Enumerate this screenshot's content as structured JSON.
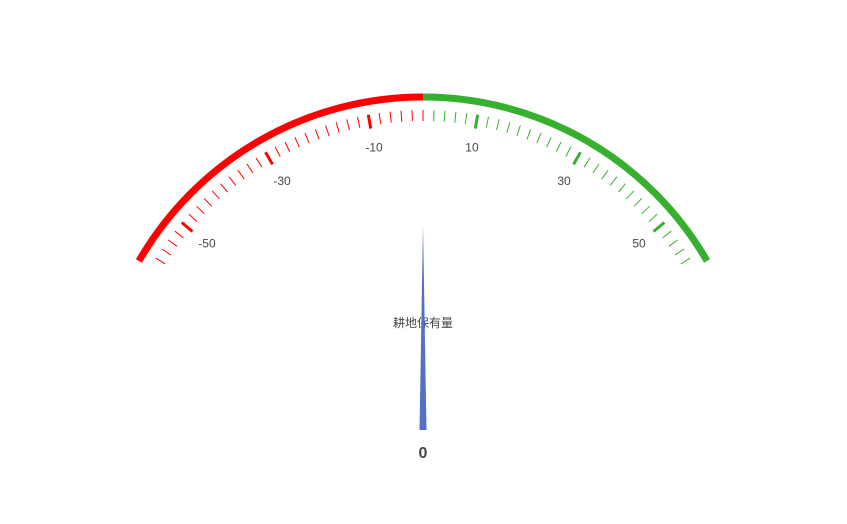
{
  "chart_data": {
    "type": "gauge",
    "title": "耕地保有量",
    "value": 0,
    "value_label": "0",
    "min": -60,
    "max": 60,
    "start_angle_deg": 150,
    "end_angle_deg": 30,
    "split_number": 6,
    "minor_ticks_per_split": 5,
    "tick_labels": [
      "-50",
      "-30",
      "-10",
      "10",
      "30",
      "50"
    ],
    "tick_label_values": [
      -50,
      -30,
      -10,
      10,
      30,
      50
    ],
    "color_bands": [
      {
        "range": [
          -60,
          0
        ],
        "color": "#ff0000"
      },
      {
        "range": [
          0,
          60
        ],
        "color": "#38b02f"
      }
    ],
    "pointer_color": "#5470c6"
  }
}
